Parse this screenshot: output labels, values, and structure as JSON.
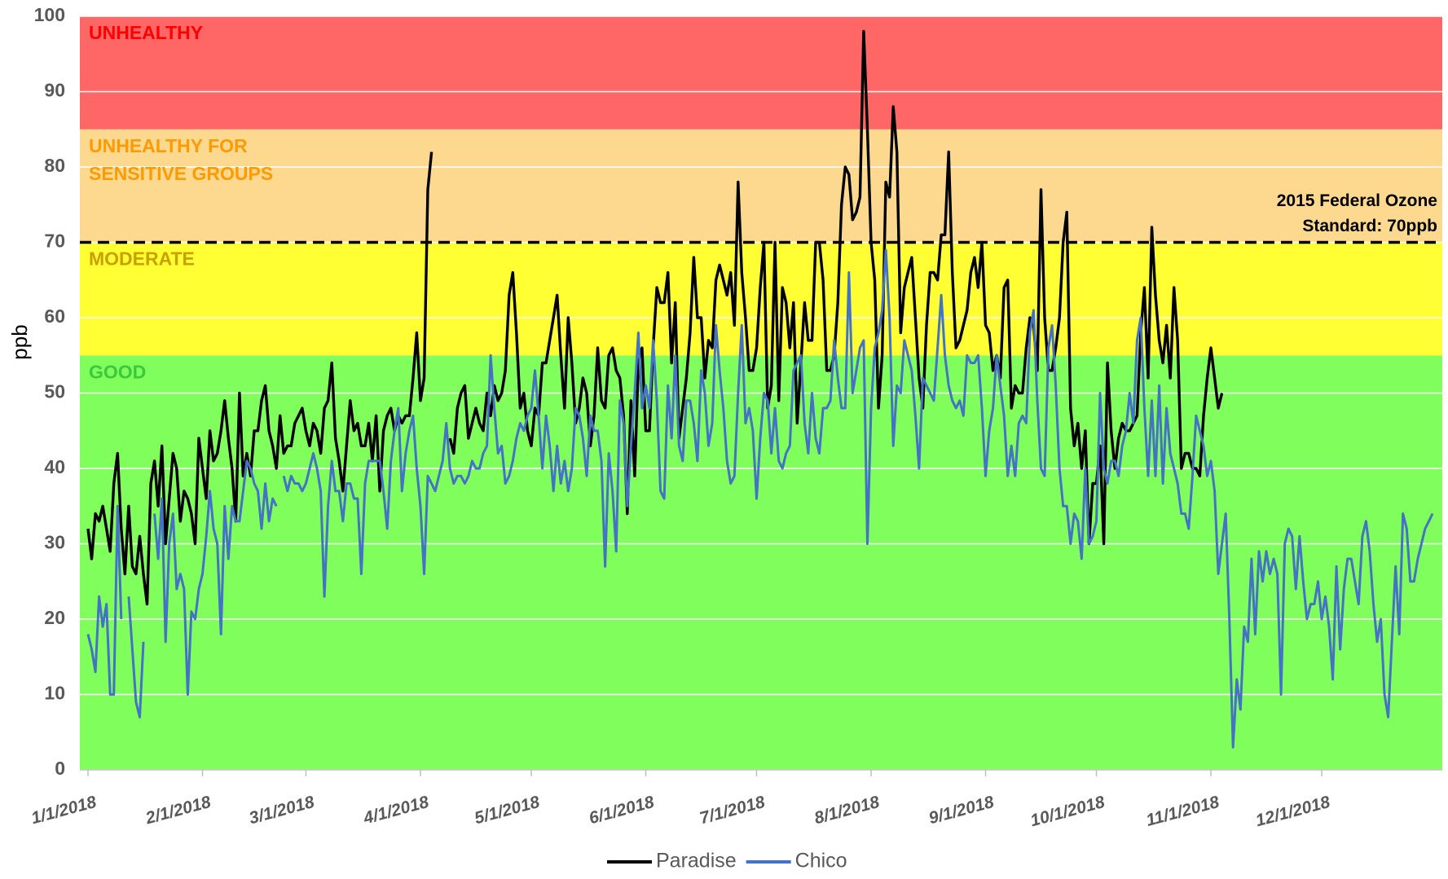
{
  "chart_data": {
    "type": "line",
    "y_label": "ppb",
    "ylim": [
      0,
      100
    ],
    "yticks": [
      0,
      10,
      20,
      30,
      40,
      50,
      60,
      70,
      80,
      90,
      100
    ],
    "grid": true,
    "xlim": [
      "1/1/2018",
      "12/31/2018"
    ],
    "xticks": [
      "1/1/2018",
      "2/1/2018",
      "3/1/2018",
      "4/1/2018",
      "5/1/2018",
      "6/1/2018",
      "7/1/2018",
      "8/1/2018",
      "9/1/2018",
      "10/1/2018",
      "11/1/2018",
      "12/1/2018"
    ],
    "bands": [
      {
        "label": [
          "GOOD"
        ],
        "from": 0,
        "to": 55,
        "color": "#80ff5c",
        "label_color": "#3cc83c"
      },
      {
        "label": [
          "MODERATE"
        ],
        "from": 55,
        "to": 70,
        "color": "#ffff33",
        "label_color": "#c8a000"
      },
      {
        "label": [
          "UNHEALTHY FOR",
          "SENSITIVE GROUPS"
        ],
        "from": 70,
        "to": 85,
        "color": "#fcd98f",
        "label_color": "#ff9a00"
      },
      {
        "label": [
          "UNHEALTHY"
        ],
        "from": 85,
        "to": 100,
        "color": "#ff6666",
        "label_color": "#ff0000"
      }
    ],
    "reference_line": {
      "value": 70,
      "label": [
        "2015 Federal Ozone",
        "Standard:  70ppb"
      ]
    },
    "legend": "bottom",
    "x": [
      "1/1/2018",
      "1/2/2018",
      "1/3/2018",
      "1/4/2018",
      "1/5/2018",
      "1/6/2018",
      "1/7/2018",
      "1/8/2018",
      "1/9/2018",
      "1/10/2018",
      "1/11/2018",
      "1/12/2018",
      "1/13/2018",
      "1/14/2018",
      "1/15/2018",
      "1/16/2018",
      "1/17/2018",
      "1/18/2018",
      "1/19/2018",
      "1/20/2018",
      "1/21/2018",
      "1/22/2018",
      "1/23/2018",
      "1/24/2018",
      "1/25/2018",
      "1/26/2018",
      "1/27/2018",
      "1/28/2018",
      "1/29/2018",
      "1/30/2018",
      "1/31/2018",
      "2/1/2018",
      "2/2/2018",
      "2/3/2018",
      "2/4/2018",
      "2/5/2018",
      "2/6/2018",
      "2/7/2018",
      "2/8/2018",
      "2/9/2018",
      "2/10/2018",
      "2/11/2018",
      "2/12/2018",
      "2/13/2018",
      "2/14/2018",
      "2/15/2018",
      "2/16/2018",
      "2/17/2018",
      "2/18/2018",
      "2/19/2018",
      "2/20/2018",
      "2/21/2018",
      "2/22/2018",
      "2/23/2018",
      "2/24/2018",
      "2/25/2018",
      "2/26/2018",
      "2/27/2018",
      "2/28/2018",
      "3/1/2018",
      "3/2/2018",
      "3/3/2018",
      "3/4/2018",
      "3/5/2018",
      "3/6/2018",
      "3/7/2018",
      "3/8/2018",
      "3/9/2018",
      "3/10/2018",
      "3/11/2018",
      "3/12/2018",
      "3/13/2018",
      "3/14/2018",
      "3/15/2018",
      "3/16/2018",
      "3/17/2018",
      "3/18/2018",
      "3/19/2018",
      "3/20/2018",
      "3/21/2018",
      "3/22/2018",
      "3/23/2018",
      "3/24/2018",
      "3/25/2018",
      "3/26/2018",
      "3/27/2018",
      "3/28/2018",
      "3/29/2018",
      "3/30/2018",
      "3/31/2018",
      "4/1/2018",
      "4/2/2018",
      "4/3/2018",
      "4/4/2018",
      "4/5/2018",
      "4/6/2018",
      "4/7/2018",
      "4/8/2018",
      "4/9/2018",
      "4/10/2018",
      "4/11/2018",
      "4/12/2018",
      "4/13/2018",
      "4/14/2018",
      "4/15/2018",
      "4/16/2018",
      "4/17/2018",
      "4/18/2018",
      "4/19/2018",
      "4/20/2018",
      "4/21/2018",
      "4/22/2018",
      "4/23/2018",
      "4/24/2018",
      "4/25/2018",
      "4/26/2018",
      "4/27/2018",
      "4/28/2018",
      "4/29/2018",
      "4/30/2018",
      "5/1/2018",
      "5/2/2018",
      "5/3/2018",
      "5/4/2018",
      "5/5/2018",
      "5/6/2018",
      "5/7/2018",
      "5/8/2018",
      "5/9/2018",
      "5/10/2018",
      "5/11/2018",
      "5/12/2018",
      "5/13/2018",
      "5/14/2018",
      "5/15/2018",
      "5/16/2018",
      "5/17/2018",
      "5/18/2018",
      "5/19/2018",
      "5/20/2018",
      "5/21/2018",
      "5/22/2018",
      "5/23/2018",
      "5/24/2018",
      "5/25/2018",
      "5/26/2018",
      "5/27/2018",
      "5/28/2018",
      "5/29/2018",
      "5/30/2018",
      "5/31/2018",
      "6/1/2018",
      "6/2/2018",
      "6/3/2018",
      "6/4/2018",
      "6/5/2018",
      "6/6/2018",
      "6/7/2018",
      "6/8/2018",
      "6/9/2018",
      "6/10/2018",
      "6/11/2018",
      "6/12/2018",
      "6/13/2018",
      "6/14/2018",
      "6/15/2018",
      "6/16/2018",
      "6/17/2018",
      "6/18/2018",
      "6/19/2018",
      "6/20/2018",
      "6/21/2018",
      "6/22/2018",
      "6/23/2018",
      "6/24/2018",
      "6/25/2018",
      "6/26/2018",
      "6/27/2018",
      "6/28/2018",
      "6/29/2018",
      "6/30/2018",
      "7/1/2018",
      "7/2/2018",
      "7/3/2018",
      "7/4/2018",
      "7/5/2018",
      "7/6/2018",
      "7/7/2018",
      "7/8/2018",
      "7/9/2018",
      "7/10/2018",
      "7/11/2018",
      "7/12/2018",
      "7/13/2018",
      "7/14/2018",
      "7/15/2018",
      "7/16/2018",
      "7/17/2018",
      "7/18/2018",
      "7/19/2018",
      "7/20/2018",
      "7/21/2018",
      "7/22/2018",
      "7/23/2018",
      "7/24/2018",
      "7/25/2018",
      "7/26/2018",
      "7/27/2018",
      "7/28/2018",
      "7/29/2018",
      "7/30/2018",
      "7/31/2018",
      "8/1/2018",
      "8/2/2018",
      "8/3/2018",
      "8/4/2018",
      "8/5/2018",
      "8/6/2018",
      "8/7/2018",
      "8/8/2018",
      "8/9/2018",
      "8/10/2018",
      "8/11/2018",
      "8/12/2018",
      "8/13/2018",
      "8/14/2018",
      "8/15/2018",
      "8/16/2018",
      "8/17/2018",
      "8/18/2018",
      "8/19/2018",
      "8/20/2018",
      "8/21/2018",
      "8/22/2018",
      "8/23/2018",
      "8/24/2018",
      "8/25/2018",
      "8/26/2018",
      "8/27/2018",
      "8/28/2018",
      "8/29/2018",
      "8/30/2018",
      "8/31/2018",
      "9/1/2018",
      "9/2/2018",
      "9/3/2018",
      "9/4/2018",
      "9/5/2018",
      "9/6/2018",
      "9/7/2018",
      "9/8/2018",
      "9/9/2018",
      "9/10/2018",
      "9/11/2018",
      "9/12/2018",
      "9/13/2018",
      "9/14/2018",
      "9/15/2018",
      "9/16/2018",
      "9/17/2018",
      "9/18/2018",
      "9/19/2018",
      "9/20/2018",
      "9/21/2018",
      "9/22/2018",
      "9/23/2018",
      "9/24/2018",
      "9/25/2018",
      "9/26/2018",
      "9/27/2018",
      "9/28/2018",
      "9/29/2018",
      "9/30/2018",
      "10/1/2018",
      "10/2/2018",
      "10/3/2018",
      "10/4/2018",
      "10/5/2018",
      "10/6/2018",
      "10/7/2018",
      "10/8/2018",
      "10/9/2018",
      "10/10/2018",
      "10/11/2018",
      "10/12/2018",
      "10/13/2018",
      "10/14/2018",
      "10/15/2018",
      "10/16/2018",
      "10/17/2018",
      "10/18/2018",
      "10/19/2018",
      "10/20/2018",
      "10/21/2018",
      "10/22/2018",
      "10/23/2018",
      "10/24/2018",
      "10/25/2018",
      "10/26/2018",
      "10/27/2018",
      "10/28/2018",
      "10/29/2018",
      "10/30/2018",
      "10/31/2018",
      "11/1/2018",
      "11/2/2018",
      "11/3/2018",
      "11/4/2018",
      "11/5/2018",
      "11/6/2018",
      "11/7/2018",
      "11/8/2018",
      "11/9/2018",
      "11/10/2018",
      "11/11/2018",
      "11/12/2018",
      "11/13/2018",
      "11/14/2018",
      "11/15/2018",
      "11/16/2018",
      "11/17/2018",
      "11/18/2018",
      "11/19/2018",
      "11/20/2018",
      "11/21/2018",
      "11/22/2018",
      "11/23/2018",
      "11/24/2018",
      "11/25/2018",
      "11/26/2018",
      "11/27/2018",
      "11/28/2018",
      "11/29/2018",
      "11/30/2018",
      "12/1/2018",
      "12/2/2018",
      "12/3/2018",
      "12/4/2018",
      "12/5/2018",
      "12/6/2018",
      "12/7/2018",
      "12/8/2018",
      "12/9/2018",
      "12/10/2018",
      "12/11/2018",
      "12/12/2018",
      "12/13/2018",
      "12/14/2018",
      "12/15/2018",
      "12/16/2018",
      "12/17/2018",
      "12/18/2018",
      "12/19/2018",
      "12/20/2018",
      "12/21/2018",
      "12/22/2018",
      "12/23/2018",
      "12/24/2018",
      "12/25/2018",
      "12/26/2018",
      "12/27/2018",
      "12/28/2018",
      "12/29/2018",
      "12/30/2018",
      "12/31/2018"
    ],
    "series": [
      {
        "name": "Paradise",
        "color": "#000000",
        "values": [
          32,
          28,
          34,
          33,
          35,
          32,
          29,
          38,
          42,
          32,
          26,
          35,
          27,
          26,
          31,
          26,
          22,
          38,
          41,
          35,
          43,
          30,
          36,
          42,
          40,
          33,
          37,
          36,
          34,
          30,
          44,
          40,
          36,
          45,
          41,
          42,
          45,
          49,
          44,
          40,
          33,
          50,
          39,
          42,
          39,
          45,
          45,
          49,
          51,
          45,
          43,
          40,
          47,
          42,
          43,
          43,
          46,
          47,
          48,
          45,
          43,
          46,
          45,
          42,
          48,
          49,
          54,
          44,
          41,
          37,
          43,
          49,
          45,
          46,
          43,
          43,
          46,
          41,
          47,
          37,
          45,
          47,
          48,
          45,
          47,
          46,
          47,
          47,
          52,
          58,
          49,
          52,
          77,
          82,
          null,
          null,
          null,
          null,
          44,
          42,
          48,
          50,
          51,
          44,
          46,
          48,
          46,
          45,
          50,
          47,
          51,
          49,
          50,
          53,
          63,
          66,
          58,
          48,
          50,
          45,
          43,
          48,
          47,
          54,
          54,
          57,
          60,
          63,
          55,
          48,
          60,
          54,
          46,
          48,
          52,
          50,
          43,
          47,
          56,
          49,
          48,
          55,
          56,
          53,
          52,
          47,
          34,
          49,
          39,
          54,
          56,
          45,
          45,
          56,
          64,
          62,
          62,
          66,
          54,
          62,
          44,
          48,
          52,
          58,
          68,
          60,
          60,
          52,
          57,
          56,
          65,
          67,
          65,
          63,
          66,
          59,
          78,
          66,
          60,
          53,
          53,
          56,
          64,
          70,
          48,
          51,
          70,
          49,
          64,
          62,
          56,
          62,
          46,
          54,
          62,
          57,
          57,
          70,
          70,
          65,
          53,
          53,
          55,
          62,
          75,
          80,
          79,
          73,
          74,
          76,
          98,
          85,
          70,
          65,
          48,
          55,
          78,
          76,
          88,
          82,
          58,
          64,
          66,
          68,
          60,
          52,
          48,
          59,
          66,
          66,
          65,
          71,
          71,
          82,
          66,
          56,
          57,
          59,
          61,
          66,
          68,
          64,
          70,
          59,
          58,
          53,
          55,
          52,
          64,
          65,
          48,
          51,
          50,
          50,
          56,
          60,
          59,
          53,
          77,
          60,
          53,
          53,
          56,
          60,
          70,
          74,
          48,
          43,
          46,
          40,
          45,
          30,
          38,
          38,
          43,
          30,
          54,
          45,
          40,
          44,
          46,
          45,
          45,
          46,
          47,
          58,
          64,
          52,
          72,
          63,
          57,
          54,
          59,
          52,
          64,
          57,
          40,
          42,
          42,
          40,
          40,
          39,
          47,
          52,
          56,
          52,
          48,
          50,
          null,
          null,
          null,
          null,
          null,
          null,
          null,
          null,
          null,
          null,
          null,
          null,
          null,
          null,
          null,
          null,
          null,
          null,
          null,
          null,
          null,
          null,
          null,
          null,
          null,
          null,
          null,
          null,
          null,
          null,
          null,
          null,
          null,
          null,
          null,
          null,
          null,
          null,
          null,
          null,
          null,
          null,
          null,
          null,
          null,
          null,
          null,
          null,
          null,
          null,
          null,
          null,
          null,
          null,
          null,
          null,
          null
        ]
      },
      {
        "name": "Chico",
        "color": "#4472c4",
        "values": [
          18,
          16,
          13,
          23,
          19,
          22,
          10,
          10,
          35,
          20,
          null,
          23,
          16,
          9,
          7,
          17,
          null,
          null,
          34,
          28,
          36,
          17,
          30,
          34,
          24,
          26,
          24,
          10,
          21,
          20,
          24,
          26,
          31,
          37,
          32,
          30,
          18,
          35,
          28,
          35,
          33,
          33,
          37,
          41,
          40,
          38,
          37,
          32,
          38,
          33,
          36,
          35,
          null,
          39,
          37,
          39,
          38,
          38,
          37,
          38,
          40,
          42,
          40,
          37,
          23,
          35,
          41,
          37,
          37,
          33,
          38,
          38,
          36,
          36,
          26,
          38,
          41,
          41,
          41,
          41,
          37,
          32,
          41,
          45,
          48,
          37,
          42,
          45,
          47,
          40,
          35,
          26,
          39,
          38,
          37,
          39,
          41,
          46,
          40,
          38,
          39,
          39,
          38,
          39,
          41,
          40,
          40,
          42,
          43,
          55,
          48,
          42,
          43,
          38,
          39,
          41,
          44,
          46,
          45,
          47,
          48,
          53,
          47,
          40,
          47,
          43,
          37,
          43,
          38,
          41,
          37,
          40,
          48,
          47,
          44,
          39,
          47,
          45,
          45,
          41,
          27,
          42,
          37,
          29,
          49,
          46,
          35,
          43,
          50,
          58,
          48,
          51,
          48,
          57,
          49,
          37,
          36,
          51,
          44,
          55,
          43,
          41,
          49,
          49,
          46,
          41,
          53,
          50,
          43,
          46,
          59,
          53,
          48,
          41,
          38,
          39,
          50,
          59,
          46,
          48,
          45,
          36,
          44,
          50,
          49,
          42,
          48,
          41,
          40,
          42,
          43,
          53,
          54,
          55,
          46,
          42,
          50,
          44,
          42,
          48,
          48,
          49,
          57,
          52,
          48,
          48,
          66,
          50,
          53,
          56,
          57,
          30,
          48,
          56,
          58,
          61,
          69,
          60,
          43,
          51,
          50,
          57,
          55,
          53,
          47,
          40,
          52,
          51,
          50,
          49,
          56,
          63,
          55,
          51,
          49,
          48,
          49,
          47,
          55,
          54,
          54,
          55,
          48,
          39,
          45,
          48,
          55,
          51,
          47,
          39,
          43,
          39,
          46,
          47,
          46,
          58,
          61,
          49,
          40,
          39,
          56,
          59,
          51,
          40,
          35,
          35,
          30,
          34,
          33,
          28,
          40,
          30,
          31,
          33,
          50,
          40,
          38,
          41,
          41,
          39,
          43,
          45,
          50,
          46,
          57,
          60,
          48,
          39,
          49,
          39,
          51,
          38,
          48,
          42,
          40,
          38,
          34,
          34,
          32,
          39,
          47,
          45,
          43,
          39,
          41,
          37,
          26,
          30,
          34,
          20,
          3,
          12,
          8,
          19,
          17,
          28,
          18,
          29,
          25,
          29,
          26,
          28,
          26,
          10,
          30,
          32,
          31,
          24,
          31,
          25,
          20,
          22,
          22,
          25,
          20,
          23,
          19,
          12,
          27,
          16,
          24,
          28,
          28,
          25,
          22,
          31,
          33,
          29,
          22,
          17,
          20,
          10,
          7,
          17,
          27,
          18,
          34,
          32,
          25,
          25,
          28,
          30,
          32,
          33,
          34
        ]
      }
    ]
  }
}
